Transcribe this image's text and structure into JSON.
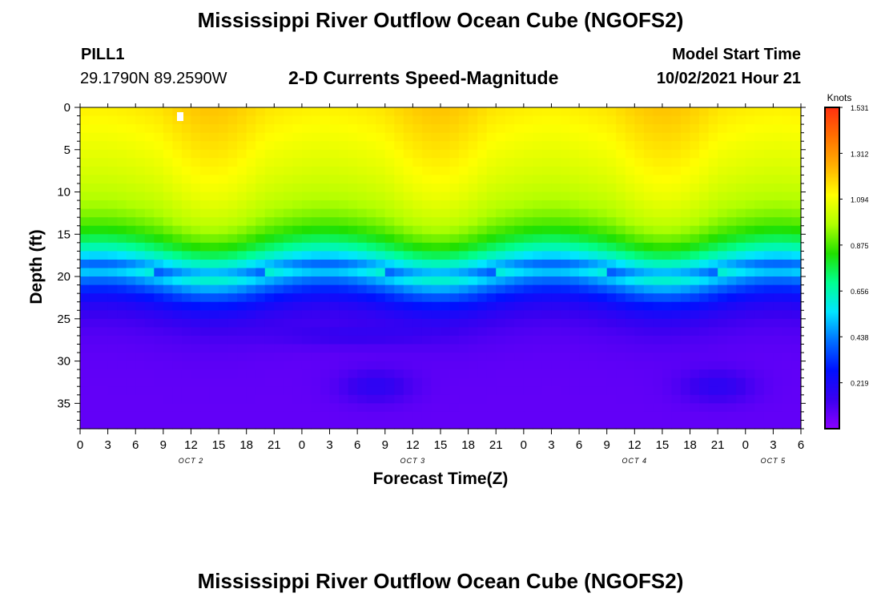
{
  "header": {
    "title": "Mississippi River Outflow Ocean Cube (NGOFS2)",
    "station": "PILL1",
    "coords": "29.1790N  89.2590W",
    "subtitle": "2-D Currents Speed-Magnitude",
    "model_start_label": "Model Start Time",
    "model_start_value": "10/02/2021 Hour 21"
  },
  "footer": {
    "title": "Mississippi River Outflow Ocean Cube (NGOFS2)"
  },
  "chart_data": {
    "type": "heatmap",
    "title": "2-D Currents Speed-Magnitude",
    "xlabel": "Forecast Time(Z)",
    "ylabel": "Depth (ft)",
    "x_unit": "hours from Oct 2 00Z",
    "xlim": [
      0,
      78
    ],
    "ylim": [
      0,
      38
    ],
    "x_tick_labels": [
      "0",
      "3",
      "6",
      "9",
      "12",
      "15",
      "18",
      "21",
      "0",
      "3",
      "6",
      "9",
      "12",
      "15",
      "18",
      "21",
      "0",
      "3",
      "6",
      "9",
      "12",
      "15",
      "18",
      "21",
      "0",
      "3",
      "6"
    ],
    "date_labels": [
      {
        "label": "OCT 2",
        "x": 12
      },
      {
        "label": "OCT 3",
        "x": 36
      },
      {
        "label": "OCT 4",
        "x": 60
      },
      {
        "label": "OCT 5",
        "x": 75
      }
    ],
    "y_ticks": [
      0,
      5,
      10,
      15,
      20,
      25,
      30,
      35
    ],
    "colorbar": {
      "title": "Knots",
      "min": 0,
      "max": 1.531,
      "tick_values": [
        "1.531",
        "1.312",
        "1.094",
        "0.875",
        "0.656",
        "0.438",
        "0.219"
      ],
      "colors": [
        "#8b00ff",
        "#3a00f0",
        "#0010ff",
        "#0070ff",
        "#00e6ff",
        "#00ff90",
        "#20e000",
        "#b0ff00",
        "#ffff00",
        "#ffb000",
        "#ff7000",
        "#ff3010"
      ]
    },
    "grid": false
  }
}
